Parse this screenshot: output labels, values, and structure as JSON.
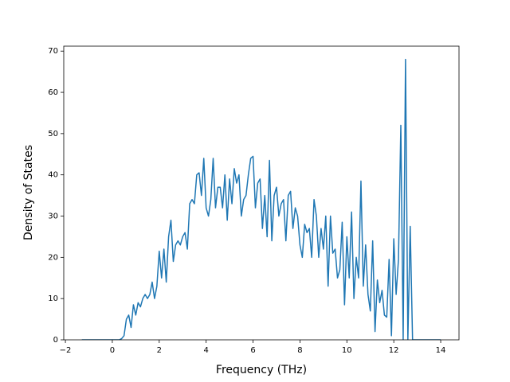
{
  "chart_data": {
    "type": "line",
    "xlabel": "Frequency (THz)",
    "ylabel": "Density of States",
    "xlim": [
      -2.07,
      14.78
    ],
    "ylim": [
      0,
      71.2
    ],
    "xticks": [
      {
        "value": -2,
        "label": "−2"
      },
      0,
      2,
      4,
      6,
      8,
      10,
      12,
      14
    ],
    "yticks": [
      0,
      10,
      20,
      30,
      40,
      50,
      60,
      70
    ],
    "series": [
      {
        "color": "#1f77b4",
        "x": [
          -1.3,
          -1.2,
          -1.1,
          -1.0,
          -0.9,
          -0.8,
          -0.7,
          -0.6,
          -0.5,
          -0.4,
          -0.3,
          -0.2,
          -0.1,
          0.0,
          0.1,
          0.2,
          0.3,
          0.4,
          0.5,
          0.6,
          0.7,
          0.8,
          0.9,
          1.0,
          1.1,
          1.2,
          1.3,
          1.4,
          1.5,
          1.6,
          1.7,
          1.8,
          1.9,
          2.0,
          2.1,
          2.2,
          2.3,
          2.4,
          2.5,
          2.6,
          2.7,
          2.8,
          2.9,
          3.0,
          3.1,
          3.2,
          3.3,
          3.4,
          3.5,
          3.6,
          3.7,
          3.8,
          3.9,
          4.0,
          4.1,
          4.2,
          4.3,
          4.4,
          4.5,
          4.6,
          4.7,
          4.8,
          4.9,
          5.0,
          5.1,
          5.2,
          5.3,
          5.4,
          5.5,
          5.6,
          5.7,
          5.8,
          5.9,
          6.0,
          6.1,
          6.2,
          6.3,
          6.4,
          6.5,
          6.6,
          6.7,
          6.8,
          6.9,
          7.0,
          7.1,
          7.2,
          7.3,
          7.4,
          7.5,
          7.6,
          7.7,
          7.8,
          7.9,
          8.0,
          8.1,
          8.2,
          8.3,
          8.4,
          8.5,
          8.6,
          8.7,
          8.8,
          8.9,
          9.0,
          9.1,
          9.2,
          9.3,
          9.4,
          9.5,
          9.6,
          9.7,
          9.8,
          9.9,
          10.0,
          10.1,
          10.2,
          10.3,
          10.4,
          10.5,
          10.6,
          10.7,
          10.8,
          10.9,
          11.0,
          11.1,
          11.2,
          11.3,
          11.4,
          11.5,
          11.6,
          11.7,
          11.8,
          11.9,
          12.0,
          12.1,
          12.2,
          12.3,
          12.4,
          12.5,
          12.6,
          12.7,
          12.8,
          12.9,
          13.0,
          13.1,
          13.2,
          13.3,
          13.4,
          13.5,
          13.6,
          13.7,
          13.8,
          13.9,
          14.0
        ],
        "values": [
          0,
          0,
          0,
          0,
          0,
          0,
          0,
          0,
          0,
          0,
          0,
          0,
          0,
          0,
          0,
          0,
          0,
          0.3,
          1,
          5,
          6,
          3,
          8.5,
          6,
          9,
          8,
          10,
          11,
          10,
          11,
          14,
          10,
          13,
          21.5,
          15,
          22,
          14,
          25,
          29,
          19,
          23,
          24,
          23,
          25,
          26,
          22,
          33,
          34,
          33,
          40,
          40.5,
          35,
          44,
          32,
          30,
          34,
          44,
          32,
          37,
          37,
          32,
          40,
          29,
          39,
          33,
          41.5,
          38,
          40,
          30,
          34,
          35,
          40,
          44,
          44.5,
          32,
          38,
          39,
          27,
          35,
          25,
          43.5,
          24,
          35,
          37,
          30,
          33,
          34,
          24,
          35,
          36,
          27,
          32,
          30,
          23,
          20,
          28,
          26,
          27,
          20,
          34,
          30,
          20,
          27,
          22,
          30,
          13,
          30,
          21,
          22,
          15,
          17,
          28.5,
          8.5,
          25,
          15,
          31,
          10,
          20,
          15,
          38.5,
          13,
          23,
          11,
          7,
          24,
          2,
          14.5,
          9,
          12,
          6,
          5.5,
          19.5,
          1,
          24.5,
          11,
          19.5,
          52,
          0,
          68,
          0,
          27.5,
          0,
          0,
          0,
          0,
          0,
          0,
          0,
          0,
          0,
          0,
          0,
          0,
          0
        ]
      }
    ]
  }
}
